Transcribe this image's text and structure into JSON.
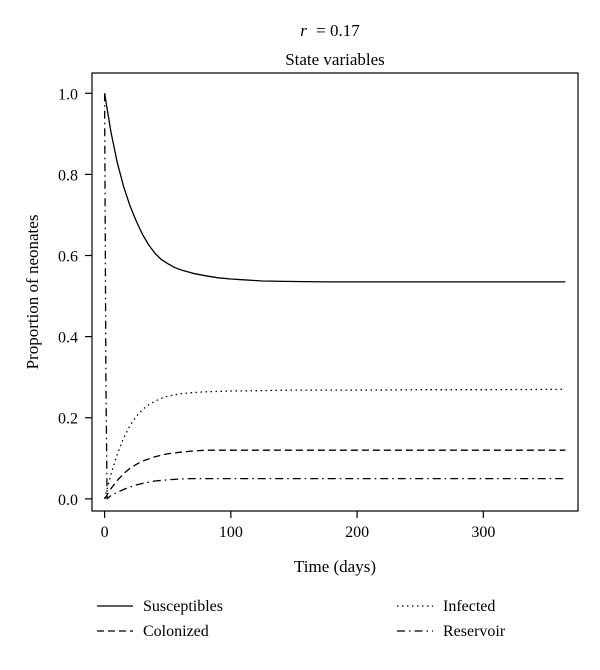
{
  "chart_data": {
    "type": "line",
    "title_prefix": "r",
    "title_value": "= 0.17",
    "subtitle": "State variables",
    "xlabel": "Time (days)",
    "ylabel": "Proportion of neonates",
    "xlim": [
      -10,
      375
    ],
    "ylim": [
      -0.03,
      1.05
    ],
    "xticks": [
      0,
      100,
      200,
      300
    ],
    "xtick_labels": [
      "0",
      "100",
      "200",
      "300"
    ],
    "yticks": [
      0.0,
      0.2,
      0.4,
      0.6,
      0.8,
      1.0
    ],
    "ytick_labels": [
      "0.0",
      "0.2",
      "0.4",
      "0.6",
      "0.8",
      "1.0"
    ],
    "grid": false,
    "legend_position": "bottom",
    "series": [
      {
        "name": "Susceptibles",
        "dash": "solid",
        "x": [
          0,
          5,
          10,
          15,
          20,
          25,
          30,
          35,
          40,
          45,
          50,
          55,
          60,
          70,
          80,
          90,
          100,
          110,
          125,
          150,
          175,
          200,
          250,
          300,
          365
        ],
        "y": [
          1.0,
          0.905,
          0.83,
          0.77,
          0.723,
          0.685,
          0.652,
          0.626,
          0.605,
          0.59,
          0.58,
          0.571,
          0.565,
          0.556,
          0.55,
          0.545,
          0.542,
          0.54,
          0.537,
          0.536,
          0.535,
          0.535,
          0.535,
          0.535,
          0.535
        ]
      },
      {
        "name": "Infected",
        "dash": "dotted",
        "x": [
          0,
          5,
          10,
          15,
          20,
          25,
          30,
          35,
          40,
          45,
          50,
          60,
          70,
          80,
          90,
          100,
          125,
          150,
          200,
          250,
          300,
          365
        ],
        "y": [
          0.0,
          0.06,
          0.11,
          0.15,
          0.18,
          0.203,
          0.22,
          0.232,
          0.241,
          0.248,
          0.253,
          0.259,
          0.262,
          0.264,
          0.265,
          0.266,
          0.267,
          0.268,
          0.268,
          0.269,
          0.269,
          0.27
        ]
      },
      {
        "name": "Colonized",
        "dash": "dashed",
        "x": [
          0,
          5,
          10,
          15,
          20,
          25,
          30,
          40,
          50,
          60,
          70,
          80,
          100,
          150,
          200,
          300,
          365
        ],
        "y": [
          0.0,
          0.025,
          0.045,
          0.062,
          0.075,
          0.085,
          0.093,
          0.104,
          0.111,
          0.115,
          0.118,
          0.12,
          0.12,
          0.12,
          0.12,
          0.12,
          0.12
        ]
      },
      {
        "name": "Reservoir",
        "dash": "dashdot",
        "x": [
          0,
          1,
          2,
          5,
          10,
          15,
          20,
          25,
          30,
          40,
          50,
          60,
          70,
          80,
          100,
          150,
          200,
          300,
          365
        ],
        "y": [
          1.0,
          0.3,
          0.0,
          0.008,
          0.016,
          0.023,
          0.029,
          0.034,
          0.038,
          0.044,
          0.047,
          0.049,
          0.05,
          0.05,
          0.05,
          0.05,
          0.05,
          0.05,
          0.05
        ]
      }
    ]
  }
}
